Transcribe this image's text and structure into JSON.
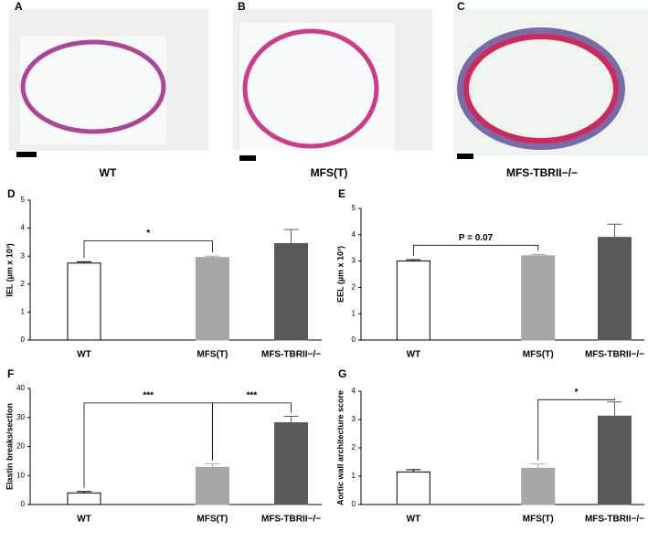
{
  "panels": [
    {
      "letter": "A",
      "caption": "WT"
    },
    {
      "letter": "B",
      "caption": "MFS(T)"
    },
    {
      "letter": "C",
      "caption": "MFS-TBRII−/−"
    }
  ],
  "chart_data": [
    {
      "type": "bar",
      "letter": "D",
      "ylabel": "IEL (µm x 10³)",
      "categories": [
        "WT",
        "MFS(T)",
        "MFS-TBRII−/−"
      ],
      "values": [
        2.75,
        2.95,
        3.45
      ],
      "errors": [
        0.05,
        0.05,
        0.5
      ],
      "colors": [
        "#ffffff",
        "#a6a6a6",
        "#595959"
      ],
      "ylim": [
        0,
        5
      ],
      "yticks": [
        0,
        1,
        2,
        3,
        4,
        5
      ],
      "annotations": [
        {
          "label": "*",
          "from": 0,
          "to": 1
        }
      ]
    },
    {
      "type": "bar",
      "letter": "E",
      "ylabel": "EEL (µm x 10³)",
      "categories": [
        "WT",
        "MFS(T)",
        "MFS-TBRII−/−"
      ],
      "values": [
        3.0,
        3.2,
        3.9
      ],
      "errors": [
        0.05,
        0.05,
        0.5
      ],
      "colors": [
        "#ffffff",
        "#a6a6a6",
        "#595959"
      ],
      "ylim": [
        0,
        5
      ],
      "yticks": [
        0,
        1,
        2,
        3,
        4,
        5
      ],
      "annotations": [
        {
          "label": "P = 0.07",
          "from": 0,
          "to": 1
        }
      ]
    },
    {
      "type": "bar",
      "letter": "F",
      "ylabel": "Elastin breaks/section",
      "categories": [
        "WT",
        "MFS(T)",
        "MFS-TBRII−/−"
      ],
      "values": [
        4,
        12.8,
        28.2
      ],
      "errors": [
        0.5,
        1.2,
        2.2
      ],
      "colors": [
        "#ffffff",
        "#a6a6a6",
        "#595959"
      ],
      "ylim": [
        0,
        40
      ],
      "yticks": [
        0,
        10,
        20,
        30,
        40
      ],
      "annotations": [
        {
          "label": "***",
          "from": 0,
          "to": 1
        },
        {
          "label": "***",
          "from": 1,
          "to": 2
        }
      ]
    },
    {
      "type": "bar",
      "letter": "G",
      "ylabel": "Aortic wall architecture score",
      "categories": [
        "WT",
        "MFS(T)",
        "MFS-TBRII−/−"
      ],
      "values": [
        1.15,
        1.28,
        3.12
      ],
      "errors": [
        0.08,
        0.15,
        0.5
      ],
      "colors": [
        "#ffffff",
        "#a6a6a6",
        "#595959"
      ],
      "ylim": [
        0,
        4
      ],
      "yticks": [
        0,
        1,
        2,
        3,
        4
      ],
      "annotations": [
        {
          "label": "*",
          "from": 1,
          "to": 2
        }
      ]
    }
  ]
}
